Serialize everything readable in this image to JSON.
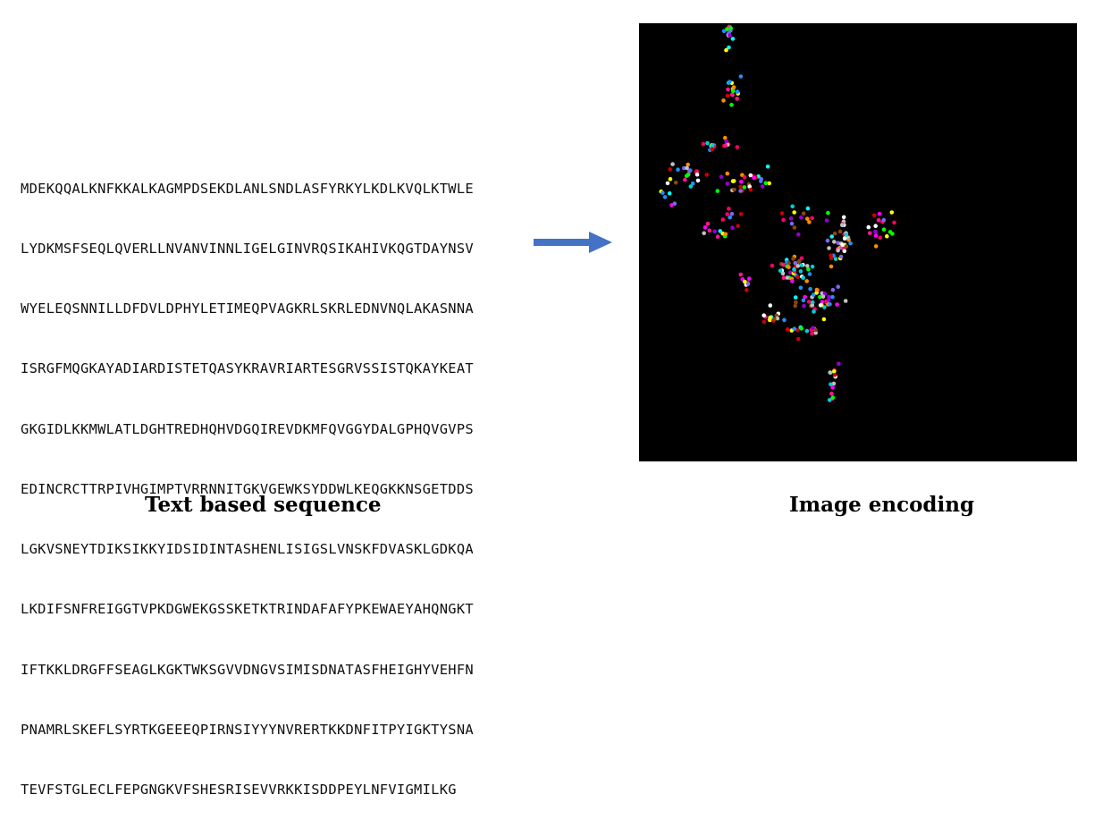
{
  "sequence_lines": [
    "MDEKQQALKNFKKALKAGMPDSEKDLANLSNDLASFYRKYLKDLKVQLKTWLE",
    "LYDKMSFSEQLQVERLLNVANVINNLIGELGINVRQSIKAHIVKQGTDAYNSV",
    "WYELEQSNNILLDFDVLDPHYLETIMEQPVAGKRLSKRLEDNVNQLAKASNNA",
    "ISRGFMQGKAYADIARDISTETQASYKRAVRIARTESGRVSSISTQKAYKEAT",
    "GKGIDLKKMWLATLDGHTREDHQHVDGQIREVDKMFQVGGYDALGPHQVGVPS",
    "EDINCRCTTRPIVHGIMPTVRRNNITGKVGEWKSYDDWLKEQGKKNSGETDDS",
    "LGKVSNEYTDIKSIKKYIDSIDINTASHENLISIGSLVNSKFDVASKLGDKQA",
    "LKDIFSNFREIGGTVPKDGWEKGSSKETKTRINDAFAFYPKEWAEYAHQNGKT",
    "IFTKKLDRGFFSEAGLKGKTWKSGVVDNGVSIMISDNATASFHEIGHYVEHFN",
    "PNAMRLSKEFLSYRTKGEEEQPIRNSIYYYNVRERTKKDNFITPYIGKTYSNA",
    "TEVFSTGLECLFEPGNGKVFSHESRISEVVRKKISDDPEYLNFVIGMILKG"
  ],
  "captions": {
    "left": "Text based sequence",
    "right": "Image encoding"
  },
  "colors": {
    "arrow": "#4472C4",
    "encoding_background": "#000000",
    "dot_palette": [
      "#ff00ff",
      "#ffff00",
      "#00ffff",
      "#ffffff",
      "#ff0066",
      "#ff8c00",
      "#00ff00",
      "#1e90ff",
      "#9400d3",
      "#8b4513",
      "#ff1493",
      "#cc0000",
      "#c0c0c0",
      "#7b68ee",
      "#00ced1"
    ]
  }
}
